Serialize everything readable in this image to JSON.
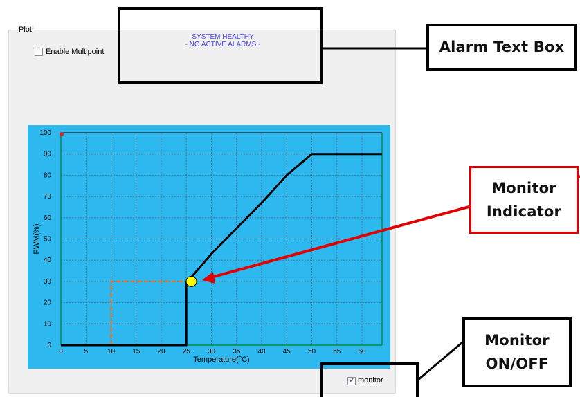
{
  "panel": {
    "group_label": "Plot",
    "multipoint_label": "Enable Multipoint",
    "monitor_label": "monitor",
    "monitor_checked": true
  },
  "alarm": {
    "line1": "SYSTEM HEALTHY",
    "line2": "- NO ACTIVE ALARMS -"
  },
  "callouts": {
    "alarm_text_box": "Alarm Text Box",
    "monitor_indicator": "Monitor Indicator",
    "monitor_onoff": "Monitor ON/OFF"
  },
  "colors": {
    "plot_bg": "#2db8ef",
    "curve": "#000000",
    "indicator": "#ffff00",
    "marker_lines": "#f07020",
    "alarm_text": "#4040ff",
    "indicator_arrow": "#e00000"
  },
  "icons": {
    "monitor_check": "checkmark-icon"
  },
  "chart_data": {
    "type": "line",
    "xlabel": "Temperature(°C)",
    "ylabel": "PWM(%)",
    "xlim": [
      0,
      64
    ],
    "ylim": [
      0,
      100
    ],
    "x_ticks": [
      0,
      5,
      10,
      15,
      20,
      25,
      30,
      35,
      40,
      45,
      50,
      55,
      60
    ],
    "y_ticks": [
      0,
      10,
      20,
      30,
      40,
      50,
      60,
      70,
      80,
      90,
      100
    ],
    "grid": true,
    "series": [
      {
        "x": [
          0,
          25,
          25,
          26,
          30,
          35,
          40,
          45,
          50,
          64
        ],
        "values": [
          0,
          0,
          30,
          32,
          43,
          55,
          67,
          80,
          90,
          90
        ]
      }
    ],
    "indicator": {
      "x": 26,
      "y": 30
    },
    "setpoint": {
      "x": 10,
      "y": 30
    }
  }
}
